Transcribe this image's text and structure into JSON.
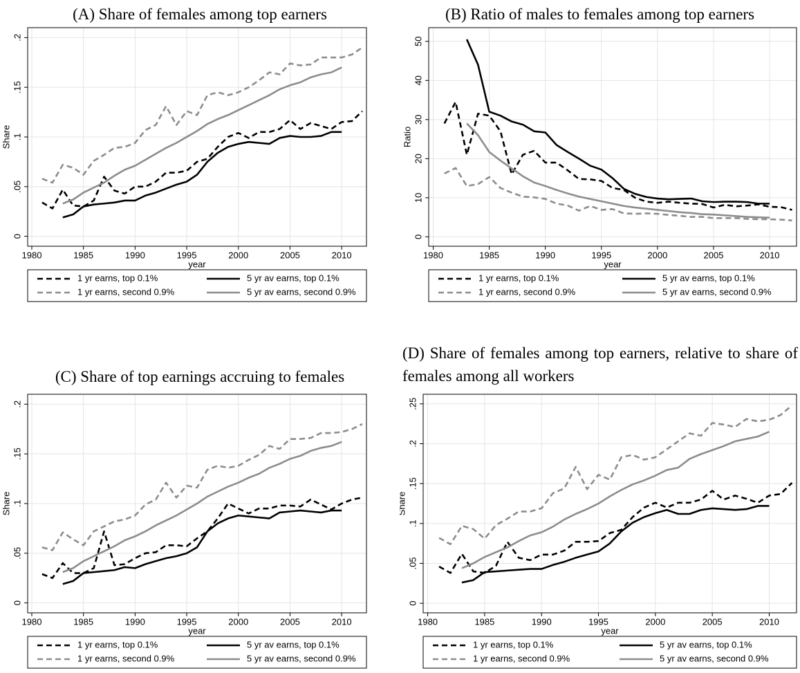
{
  "chart_data": [
    {
      "type": "line",
      "title": "(A) Share of females among top earners",
      "xlabel": "year",
      "ylabel": "Share",
      "x": [
        1981,
        1982,
        1983,
        1984,
        1985,
        1986,
        1987,
        1988,
        1989,
        1990,
        1991,
        1992,
        1993,
        1994,
        1995,
        1996,
        1997,
        1998,
        1999,
        2000,
        2001,
        2002,
        2003,
        2004,
        2005,
        2006,
        2007,
        2008,
        2009,
        2010,
        2011,
        2012
      ],
      "xlim": [
        1979.6,
        2012.4
      ],
      "xticks": [
        1980,
        1985,
        1990,
        1995,
        2000,
        2005,
        2010
      ],
      "ylim": [
        -0.01,
        0.21
      ],
      "yticks": [
        0,
        {
          "value": 0.05,
          "label": ".05"
        },
        {
          "value": 0.1,
          "label": ".1"
        },
        {
          "value": 0.15,
          "label": ".15"
        },
        {
          "value": 0.2,
          "label": ".2"
        }
      ],
      "grid": true,
      "series": [
        {
          "name": "1 yr earns, top 0.1%",
          "color": "#000000",
          "dash": true,
          "values": [
            0.034,
            0.028,
            0.047,
            0.031,
            0.03,
            0.036,
            0.06,
            0.046,
            0.043,
            0.05,
            0.05,
            0.055,
            0.064,
            0.064,
            0.066,
            0.075,
            0.078,
            0.09,
            0.1,
            0.104,
            0.099,
            0.105,
            0.105,
            0.108,
            0.117,
            0.108,
            0.114,
            0.111,
            0.108,
            0.115,
            0.116,
            0.126
          ]
        },
        {
          "name": "5 yr av earns, top 0.1%",
          "color": "#000000",
          "dash": false,
          "values": [
            null,
            null,
            0.019,
            0.022,
            0.03,
            0.032,
            0.033,
            0.034,
            0.036,
            0.036,
            0.041,
            0.044,
            0.048,
            0.052,
            0.055,
            0.062,
            0.075,
            0.084,
            0.09,
            0.093,
            0.095,
            0.094,
            0.093,
            0.099,
            0.101,
            0.1,
            0.1,
            0.101,
            0.105,
            0.105,
            null,
            null
          ]
        },
        {
          "name": "1 yr earns, second 0.9%",
          "color": "#8c8c8c",
          "dash": true,
          "values": [
            0.058,
            0.054,
            0.072,
            0.069,
            0.062,
            0.076,
            0.082,
            0.089,
            0.09,
            0.094,
            0.107,
            0.112,
            0.131,
            0.112,
            0.126,
            0.122,
            0.142,
            0.145,
            0.142,
            0.145,
            0.15,
            0.157,
            0.165,
            0.163,
            0.174,
            0.172,
            0.173,
            0.18,
            0.18,
            0.18,
            0.183,
            0.19
          ]
        },
        {
          "name": "5 yr av earns, second 0.9%",
          "color": "#8c8c8c",
          "dash": false,
          "values": [
            null,
            null,
            0.033,
            0.037,
            0.044,
            0.049,
            0.054,
            0.061,
            0.067,
            0.071,
            0.077,
            0.083,
            0.089,
            0.094,
            0.1,
            0.106,
            0.113,
            0.118,
            0.122,
            0.127,
            0.132,
            0.137,
            0.142,
            0.148,
            0.152,
            0.155,
            0.16,
            0.163,
            0.165,
            0.17,
            null,
            null
          ]
        }
      ]
    },
    {
      "type": "line",
      "title": "(B) Ratio of males to females among top earners",
      "xlabel": "year",
      "ylabel": "Ratio",
      "x": [
        1981,
        1982,
        1983,
        1984,
        1985,
        1986,
        1987,
        1988,
        1989,
        1990,
        1991,
        1992,
        1993,
        1994,
        1995,
        1996,
        1997,
        1998,
        1999,
        2000,
        2001,
        2002,
        2003,
        2004,
        2005,
        2006,
        2007,
        2008,
        2009,
        2010,
        2011,
        2012
      ],
      "xlim": [
        1979.6,
        2012.4
      ],
      "xticks": [
        1980,
        1985,
        1990,
        1995,
        2000,
        2005,
        2010
      ],
      "ylim": [
        -2.4,
        53.5
      ],
      "yticks": [
        0,
        10,
        20,
        30,
        40,
        50
      ],
      "grid": true,
      "series": [
        {
          "name": "1 yr earns, top 0.1%",
          "color": "#000000",
          "dash": true,
          "values": [
            29,
            34.5,
            21,
            31.5,
            31,
            27,
            16,
            21,
            22,
            19,
            19,
            17,
            14.8,
            14.7,
            14.3,
            12.5,
            12,
            10,
            9,
            8.7,
            9,
            8.7,
            8.5,
            8.4,
            7.5,
            8.2,
            7.8,
            8,
            8.3,
            7.7,
            7.6,
            6.9
          ]
        },
        {
          "name": "5 yr av earns, top 0.1%",
          "color": "#000000",
          "dash": false,
          "values": [
            null,
            null,
            50.5,
            44,
            32,
            31,
            29.5,
            28.7,
            27,
            26.7,
            23.5,
            21.7,
            20,
            18.2,
            17.2,
            15,
            12.3,
            11,
            10.2,
            9.8,
            9.6,
            9.7,
            9.8,
            9.1,
            8.9,
            9,
            9,
            8.9,
            8.5,
            8.5,
            null,
            null
          ]
        },
        {
          "name": "1 yr earns, second 0.9%",
          "color": "#8c8c8c",
          "dash": true,
          "values": [
            16.2,
            17.6,
            13,
            13.5,
            15.3,
            12.5,
            11.3,
            10.3,
            10.1,
            9.7,
            8.5,
            8,
            6.7,
            7.9,
            6.9,
            7.1,
            6,
            5.9,
            6,
            5.9,
            5.6,
            5.4,
            5.1,
            5.1,
            4.8,
            4.8,
            4.8,
            4.6,
            4.5,
            4.5,
            4.4,
            4.2
          ]
        },
        {
          "name": "5 yr av earns, second 0.9%",
          "color": "#8c8c8c",
          "dash": false,
          "values": [
            null,
            null,
            29,
            26,
            21.7,
            19.5,
            17.5,
            15.5,
            13.9,
            13,
            12,
            11.1,
            10.3,
            9.7,
            9.1,
            8.5,
            7.9,
            7.5,
            7.2,
            6.9,
            6.6,
            6.3,
            6.1,
            5.8,
            5.7,
            5.5,
            5.3,
            5.1,
            5.0,
            4.9,
            null,
            null
          ]
        }
      ]
    },
    {
      "type": "line",
      "title": "(C) Share of top earnings accruing to females",
      "xlabel": "year",
      "ylabel": "Share",
      "x": [
        1981,
        1982,
        1983,
        1984,
        1985,
        1986,
        1987,
        1988,
        1989,
        1990,
        1991,
        1992,
        1993,
        1994,
        1995,
        1996,
        1997,
        1998,
        1999,
        2000,
        2001,
        2002,
        2003,
        2004,
        2005,
        2006,
        2007,
        2008,
        2009,
        2010,
        2011,
        2012
      ],
      "xlim": [
        1979.6,
        2012.4
      ],
      "xticks": [
        1980,
        1985,
        1990,
        1995,
        2000,
        2005,
        2010
      ],
      "ylim": [
        -0.01,
        0.21
      ],
      "yticks": [
        0,
        {
          "value": 0.05,
          "label": ".05"
        },
        {
          "value": 0.1,
          "label": ".1"
        },
        {
          "value": 0.15,
          "label": ".15"
        },
        {
          "value": 0.2,
          "label": ".2"
        }
      ],
      "grid": true,
      "series": [
        {
          "name": "1 yr earns, top 0.1%",
          "color": "#000000",
          "dash": true,
          "values": [
            0.029,
            0.025,
            0.04,
            0.03,
            0.03,
            0.035,
            0.072,
            0.038,
            0.039,
            0.045,
            0.05,
            0.051,
            0.058,
            0.058,
            0.057,
            0.065,
            0.072,
            0.085,
            0.1,
            0.095,
            0.09,
            0.095,
            0.095,
            0.098,
            0.098,
            0.097,
            0.104,
            0.099,
            0.094,
            0.1,
            0.104,
            0.106
          ]
        },
        {
          "name": "5 yr av earns, top 0.1%",
          "color": "#000000",
          "dash": false,
          "values": [
            null,
            null,
            0.019,
            0.022,
            0.03,
            0.031,
            0.032,
            0.033,
            0.036,
            0.035,
            0.039,
            0.042,
            0.045,
            0.047,
            0.05,
            0.056,
            0.072,
            0.08,
            0.085,
            0.088,
            0.087,
            0.086,
            0.085,
            0.091,
            0.092,
            0.093,
            0.092,
            0.091,
            0.093,
            0.093,
            null,
            null
          ]
        },
        {
          "name": "1 yr earns, second 0.9%",
          "color": "#8c8c8c",
          "dash": true,
          "values": [
            0.056,
            0.053,
            0.071,
            0.064,
            0.058,
            0.072,
            0.077,
            0.082,
            0.084,
            0.088,
            0.099,
            0.104,
            0.121,
            0.106,
            0.118,
            0.116,
            0.134,
            0.138,
            0.136,
            0.138,
            0.144,
            0.149,
            0.158,
            0.155,
            0.165,
            0.165,
            0.166,
            0.171,
            0.171,
            0.172,
            0.175,
            0.18
          ]
        },
        {
          "name": "5 yr av earns, second 0.9%",
          "color": "#8c8c8c",
          "dash": false,
          "values": [
            null,
            null,
            0.031,
            0.035,
            0.042,
            0.047,
            0.052,
            0.057,
            0.063,
            0.067,
            0.072,
            0.078,
            0.083,
            0.088,
            0.094,
            0.1,
            0.107,
            0.112,
            0.117,
            0.121,
            0.126,
            0.13,
            0.136,
            0.14,
            0.145,
            0.148,
            0.153,
            0.156,
            0.158,
            0.162,
            null,
            null
          ]
        }
      ]
    },
    {
      "type": "line",
      "title": "(D) Share of females among top earners, relative to share of females among all workers",
      "xlabel": "year",
      "ylabel": "Share",
      "x": [
        1981,
        1982,
        1983,
        1984,
        1985,
        1986,
        1987,
        1988,
        1989,
        1990,
        1991,
        1992,
        1993,
        1994,
        1995,
        1996,
        1997,
        1998,
        1999,
        2000,
        2001,
        2002,
        2003,
        2004,
        2005,
        2006,
        2007,
        2008,
        2009,
        2010,
        2011,
        2012
      ],
      "xlim": [
        1979.6,
        2012.4
      ],
      "xticks": [
        1980,
        1985,
        1990,
        1995,
        2000,
        2005,
        2010
      ],
      "ylim": [
        -0.012,
        0.262
      ],
      "yticks": [
        0,
        {
          "value": 0.05,
          "label": ".05"
        },
        {
          "value": 0.1,
          "label": ".1"
        },
        {
          "value": 0.15,
          "label": ".15"
        },
        {
          "value": 0.2,
          "label": ".2"
        },
        {
          "value": 0.25,
          "label": ".25"
        }
      ],
      "grid": true,
      "series": [
        {
          "name": "1 yr earns, top 0.1%",
          "color": "#000000",
          "dash": true,
          "values": [
            0.046,
            0.038,
            0.062,
            0.04,
            0.038,
            0.047,
            0.077,
            0.057,
            0.054,
            0.061,
            0.061,
            0.066,
            0.077,
            0.077,
            0.078,
            0.088,
            0.092,
            0.108,
            0.12,
            0.126,
            0.12,
            0.126,
            0.126,
            0.13,
            0.141,
            0.13,
            0.135,
            0.131,
            0.126,
            0.135,
            0.137,
            0.151
          ]
        },
        {
          "name": "5 yr av earns, top 0.1%",
          "color": "#000000",
          "dash": false,
          "values": [
            null,
            null,
            0.026,
            0.029,
            0.039,
            0.04,
            0.041,
            0.042,
            0.043,
            0.043,
            0.048,
            0.052,
            0.057,
            0.061,
            0.065,
            0.075,
            0.09,
            0.101,
            0.108,
            0.113,
            0.117,
            0.112,
            0.112,
            0.117,
            0.119,
            0.118,
            0.117,
            0.118,
            0.122,
            0.122,
            null,
            null
          ]
        },
        {
          "name": "1 yr earns, second 0.9%",
          "color": "#8c8c8c",
          "dash": true,
          "values": [
            0.082,
            0.074,
            0.097,
            0.093,
            0.081,
            0.098,
            0.106,
            0.115,
            0.115,
            0.119,
            0.138,
            0.144,
            0.171,
            0.143,
            0.161,
            0.155,
            0.183,
            0.186,
            0.18,
            0.183,
            0.193,
            0.203,
            0.213,
            0.21,
            0.226,
            0.224,
            0.221,
            0.231,
            0.228,
            0.23,
            0.236,
            0.248
          ]
        },
        {
          "name": "5 yr av earns, second 0.9%",
          "color": "#8c8c8c",
          "dash": false,
          "values": [
            null,
            null,
            0.044,
            0.05,
            0.058,
            0.064,
            0.07,
            0.078,
            0.085,
            0.089,
            0.096,
            0.105,
            0.112,
            0.118,
            0.125,
            0.134,
            0.142,
            0.149,
            0.154,
            0.16,
            0.167,
            0.17,
            0.181,
            0.187,
            0.192,
            0.197,
            0.203,
            0.206,
            0.209,
            0.215,
            null,
            null
          ]
        }
      ]
    }
  ]
}
